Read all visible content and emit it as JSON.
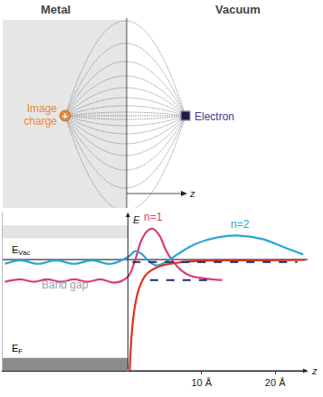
{
  "top_panel": {
    "regions": [
      "Metal",
      "Vacuum"
    ],
    "image_charge": {
      "label_lines": [
        "Image",
        "charge"
      ],
      "sign": "+",
      "color": "#e8893a"
    },
    "electron": {
      "label": "Electron",
      "color": "#3b3b8f"
    },
    "axis_label": "z"
  },
  "chart_data": {
    "type": "line",
    "x_label": "z",
    "y_label": "E",
    "xlim": [
      -17,
      24.4
    ],
    "xticks": [
      {
        "value": 10,
        "label": "10 Å"
      },
      {
        "value": 20,
        "label": "20 Å"
      }
    ],
    "ylim": [
      -0.6,
      6.8
    ],
    "yticks": [],
    "tick_labels": "x",
    "grid": false,
    "levels": [
      {
        "text": "E",
        "sub": "Vac",
        "value": 4.6,
        "color": "#000000"
      },
      {
        "text": "E",
        "sub": "F",
        "value": 0,
        "color": "#000000"
      }
    ],
    "bands": [
      {
        "ylim": [
          5.6,
          6.2
        ],
        "color": "#e3e3e3"
      },
      {
        "ylim": [
          -0.6,
          0
        ],
        "color": "#8c8c8c"
      }
    ],
    "band_gap_label": {
      "text": "Band gap",
      "color": "#9aa0a6"
    },
    "bound_states": [
      {
        "name": "n=1",
        "value": 3.64,
        "xlim": [
          3,
          11
        ],
        "color": "#1f2a6e",
        "line_style": "dash"
      },
      {
        "name": "n=2",
        "value": 4.48,
        "xlim": [
          0.6,
          23
        ],
        "color": "#1f2a6e",
        "line_style": "dash"
      }
    ],
    "series": [
      {
        "name": "n=1",
        "color": "#de3a78",
        "x": [
          -16.7,
          -14.6,
          -12.8,
          -11.0,
          -9.1,
          -7.3,
          -5.5,
          -3.7,
          -1.8,
          0,
          1.0,
          1.8,
          2.7,
          3.4,
          4.3,
          5.1,
          6.1,
          7.3,
          8.5,
          10.4,
          12.8
        ],
        "values": [
          3.56,
          3.68,
          3.56,
          3.68,
          3.56,
          3.68,
          3.56,
          3.68,
          3.52,
          3.8,
          4.6,
          5.48,
          5.96,
          6.04,
          5.72,
          5.08,
          4.52,
          4.08,
          3.84,
          3.72,
          3.64
        ]
      },
      {
        "name": "n=2",
        "color": "#2aa5d8",
        "x": [
          -16.7,
          -14.6,
          -12.2,
          -9.8,
          -7.3,
          -4.9,
          -2.4,
          0,
          1.0,
          1.8,
          3.0,
          3.9,
          4.9,
          6.7,
          9.1,
          12.2,
          15.2,
          18.3,
          21.3,
          23.8
        ],
        "values": [
          4.4,
          4.56,
          4.4,
          4.56,
          4.4,
          4.56,
          4.4,
          4.72,
          5.0,
          4.88,
          4.48,
          4.32,
          4.44,
          4.84,
          5.32,
          5.64,
          5.72,
          5.56,
          5.16,
          4.84
        ]
      },
      {
        "color": "#e2321f",
        "x": [
          0.24,
          0.49,
          0.85,
          1.46,
          2.44,
          4.27,
          7.3,
          12.2,
          18.3,
          24.1
        ],
        "values": [
          -0.6,
          1.0,
          2.2,
          3.2,
          3.88,
          4.28,
          4.48,
          4.56,
          4.56,
          4.58
        ]
      }
    ]
  }
}
